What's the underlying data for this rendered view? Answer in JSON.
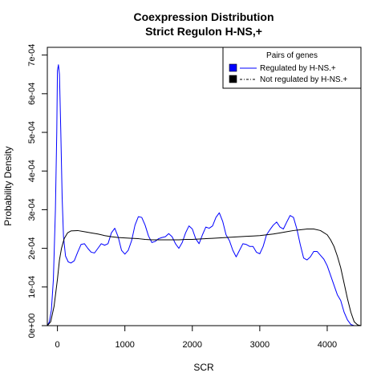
{
  "chart_data": {
    "type": "line",
    "title": "Coexpression Distribution",
    "subtitle": "Strict Regulon H-NS,+",
    "xlabel": "SCR",
    "ylabel": "Probability Density",
    "xlim": [
      -150,
      4500
    ],
    "ylim": [
      0,
      0.00072
    ],
    "x_ticks": [
      0,
      1000,
      2000,
      3000,
      4000
    ],
    "x_tick_labels": [
      "0",
      "1000",
      "2000",
      "3000",
      "4000"
    ],
    "y_ticks": [
      0,
      0.0001,
      0.0002,
      0.0003,
      0.0004,
      0.0005,
      0.0006,
      0.0007
    ],
    "y_tick_labels": [
      "0e+00",
      "1e-04",
      "2e-04",
      "3e-04",
      "4e-04",
      "5e-04",
      "6e-04",
      "7e-04"
    ],
    "grid": false,
    "legend": {
      "title": "Pairs of genes",
      "placement": "top-right",
      "entries": [
        "Regulated by  H-NS.+",
        "Not regulated by  H-NS.+"
      ]
    },
    "series": [
      {
        "name": "Regulated by  H-NS.+",
        "color": "#0000ff",
        "points": [
          [
            -150,
            0.0
          ],
          [
            -120,
            1e-05
          ],
          [
            -90,
            4e-05
          ],
          [
            -60,
            0.00012
          ],
          [
            -30,
            0.0003
          ],
          [
            -10,
            0.0005
          ],
          [
            0,
            0.00066
          ],
          [
            15,
            0.000675
          ],
          [
            30,
            0.00065
          ],
          [
            50,
            0.0005
          ],
          [
            70,
            0.00033
          ],
          [
            90,
            0.00023
          ],
          [
            120,
            0.00018
          ],
          [
            160,
            0.000165
          ],
          [
            200,
            0.000162
          ],
          [
            250,
            0.000168
          ],
          [
            300,
            0.00019
          ],
          [
            350,
            0.00021
          ],
          [
            400,
            0.000212
          ],
          [
            450,
            0.0002
          ],
          [
            500,
            0.00019
          ],
          [
            550,
            0.000188
          ],
          [
            600,
            0.0002
          ],
          [
            650,
            0.000212
          ],
          [
            700,
            0.000208
          ],
          [
            750,
            0.000212
          ],
          [
            800,
            0.00024
          ],
          [
            850,
            0.000252
          ],
          [
            900,
            0.00023
          ],
          [
            950,
            0.000195
          ],
          [
            1000,
            0.000185
          ],
          [
            1050,
            0.000195
          ],
          [
            1100,
            0.00022
          ],
          [
            1150,
            0.00026
          ],
          [
            1200,
            0.000282
          ],
          [
            1250,
            0.00028
          ],
          [
            1300,
            0.00026
          ],
          [
            1350,
            0.000232
          ],
          [
            1400,
            0.000215
          ],
          [
            1450,
            0.000218
          ],
          [
            1500,
            0.000225
          ],
          [
            1550,
            0.000228
          ],
          [
            1600,
            0.00023
          ],
          [
            1650,
            0.000238
          ],
          [
            1700,
            0.00023
          ],
          [
            1750,
            0.000212
          ],
          [
            1800,
            0.0002
          ],
          [
            1850,
            0.000215
          ],
          [
            1900,
            0.00024
          ],
          [
            1950,
            0.000258
          ],
          [
            2000,
            0.00025
          ],
          [
            2050,
            0.000225
          ],
          [
            2100,
            0.000212
          ],
          [
            2150,
            0.000235
          ],
          [
            2200,
            0.000255
          ],
          [
            2250,
            0.000252
          ],
          [
            2300,
            0.000258
          ],
          [
            2350,
            0.00028
          ],
          [
            2400,
            0.000292
          ],
          [
            2450,
            0.00027
          ],
          [
            2500,
            0.000235
          ],
          [
            2550,
            0.00022
          ],
          [
            2600,
            0.000195
          ],
          [
            2650,
            0.000178
          ],
          [
            2700,
            0.000195
          ],
          [
            2750,
            0.000212
          ],
          [
            2800,
            0.00021
          ],
          [
            2850,
            0.000205
          ],
          [
            2900,
            0.000205
          ],
          [
            2950,
            0.00019
          ],
          [
            3000,
            0.000186
          ],
          [
            3050,
            0.000205
          ],
          [
            3100,
            0.000235
          ],
          [
            3150,
            0.000248
          ],
          [
            3200,
            0.00026
          ],
          [
            3250,
            0.000268
          ],
          [
            3300,
            0.000255
          ],
          [
            3350,
            0.00025
          ],
          [
            3400,
            0.000268
          ],
          [
            3450,
            0.000285
          ],
          [
            3500,
            0.00028
          ],
          [
            3550,
            0.00025
          ],
          [
            3600,
            0.00021
          ],
          [
            3650,
            0.000175
          ],
          [
            3700,
            0.00017
          ],
          [
            3750,
            0.000178
          ],
          [
            3800,
            0.000192
          ],
          [
            3850,
            0.000192
          ],
          [
            3900,
            0.000182
          ],
          [
            3950,
            0.000172
          ],
          [
            4000,
            0.000155
          ],
          [
            4050,
            0.00013
          ],
          [
            4100,
            0.000105
          ],
          [
            4150,
            8e-05
          ],
          [
            4200,
            6.5e-05
          ],
          [
            4250,
            3.5e-05
          ],
          [
            4300,
            1.5e-05
          ],
          [
            4350,
            3e-06
          ],
          [
            4400,
            0.0
          ],
          [
            4500,
            0.0
          ]
        ]
      },
      {
        "name": "Not regulated by  H-NS.+",
        "color": "#000000",
        "points": [
          [
            -150,
            0.0
          ],
          [
            -100,
            1e-05
          ],
          [
            -50,
            5e-05
          ],
          [
            0,
            0.00012
          ],
          [
            30,
            0.00017
          ],
          [
            60,
            0.0002
          ],
          [
            100,
            0.000225
          ],
          [
            150,
            0.00024
          ],
          [
            200,
            0.000245
          ],
          [
            300,
            0.000246
          ],
          [
            400,
            0.000243
          ],
          [
            500,
            0.00024
          ],
          [
            600,
            0.000237
          ],
          [
            700,
            0.000233
          ],
          [
            800,
            0.00023
          ],
          [
            900,
            0.000228
          ],
          [
            1000,
            0.000227
          ],
          [
            1100,
            0.000226
          ],
          [
            1200,
            0.000225
          ],
          [
            1300,
            0.000223
          ],
          [
            1400,
            0.000222
          ],
          [
            1500,
            0.000222
          ],
          [
            1600,
            0.000222
          ],
          [
            1700,
            0.000222
          ],
          [
            1800,
            0.000222
          ],
          [
            1900,
            0.000223
          ],
          [
            2000,
            0.000223
          ],
          [
            2100,
            0.000224
          ],
          [
            2200,
            0.000225
          ],
          [
            2300,
            0.000226
          ],
          [
            2400,
            0.000227
          ],
          [
            2500,
            0.000228
          ],
          [
            2600,
            0.000229
          ],
          [
            2700,
            0.00023
          ],
          [
            2800,
            0.000231
          ],
          [
            2900,
            0.000232
          ],
          [
            3000,
            0.000233
          ],
          [
            3100,
            0.000235
          ],
          [
            3200,
            0.000237
          ],
          [
            3300,
            0.00024
          ],
          [
            3400,
            0.000243
          ],
          [
            3500,
            0.000246
          ],
          [
            3600,
            0.000248
          ],
          [
            3700,
            0.00025
          ],
          [
            3800,
            0.00025
          ],
          [
            3900,
            0.000246
          ],
          [
            4000,
            0.000235
          ],
          [
            4050,
            0.000222
          ],
          [
            4100,
            0.000205
          ],
          [
            4150,
            0.00018
          ],
          [
            4200,
            0.00015
          ],
          [
            4250,
            0.00011
          ],
          [
            4300,
            7e-05
          ],
          [
            4350,
            3.5e-05
          ],
          [
            4400,
            1e-05
          ],
          [
            4450,
            2e-06
          ],
          [
            4500,
            0.0
          ]
        ]
      }
    ]
  }
}
